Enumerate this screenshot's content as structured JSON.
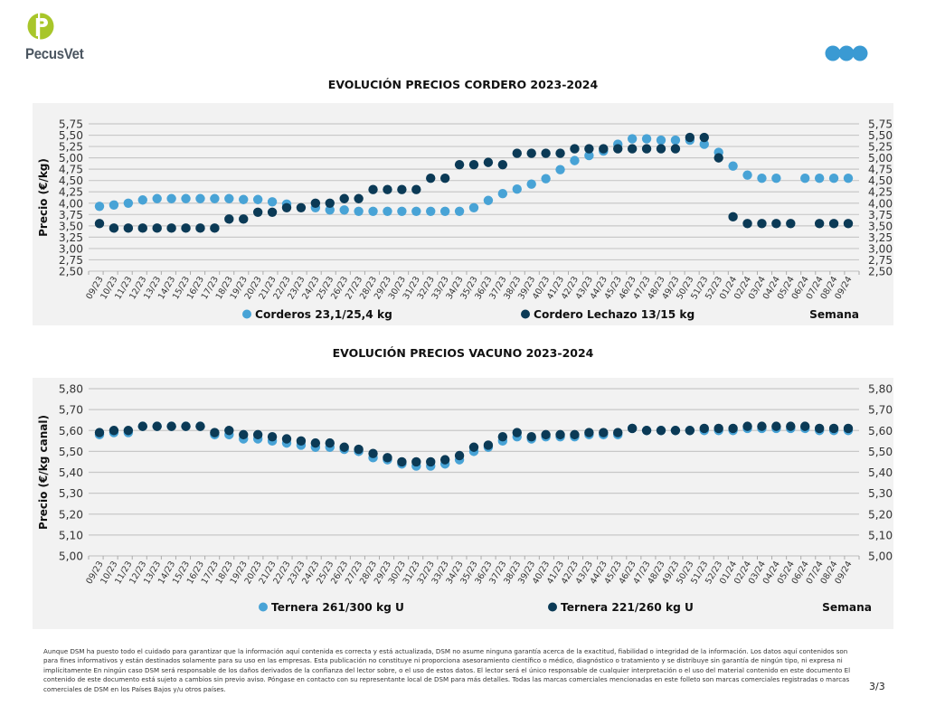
{
  "header": {
    "brand_name": "PecusVet",
    "colors": {
      "logo_green": "#a8c62a",
      "dsm_blue": "#3a9ad3"
    }
  },
  "footer": {
    "disclaimer": "Aunque DSM ha puesto todo el cuidado para garantizar que la información aquí contenida es correcta y está actualizada, DSM no asume ninguna garantía acerca de la exactitud, fiabilidad o integridad de la información. Los datos aquí contenidos son para fines informativos y están destinados solamente para su uso en las empresas. Esta publicación no constituye ni proporciona asesoramiento científico o médico, diagnóstico o tratamiento y se distribuye sin garantía de ningún tipo, ni expresa ni implícitamente En ningún caso DSM será responsable de los daños derivados de la confianza del lector sobre, o el uso de estos datos. El lector será el único responsable de cualquier interpretación o el uso del material contenido en este documento El contenido de este documento está sujeto a cambios sin previo aviso. Póngase en contacto con su representante local de DSM para más detalles. Todas las marcas comerciales mencionadas en este folleto son marcas comerciales registradas o marcas comerciales de DSM en los Países Bajos y/u otros países.",
    "page": "3/3"
  },
  "chart_data": [
    {
      "type": "scatter",
      "title": "EVOLUCIÓN PRECIOS CORDERO 2023-2024",
      "xlabel": "Semana",
      "ylabel": "Precio (€/kg)",
      "ylim": [
        2.5,
        5.75
      ],
      "ytick_step": 0.25,
      "ytick_labels": [
        "2,50",
        "2,75",
        "3,00",
        "3,25",
        "3,50",
        "3,75",
        "4,00",
        "4,25",
        "4,50",
        "4,75",
        "5,00",
        "5,25",
        "5,50",
        "5,75"
      ],
      "grid": true,
      "legend_position": "bottom",
      "secondary_y_axis": true,
      "categories": [
        "09/23",
        "10/23",
        "11/23",
        "12/23",
        "13/23",
        "14/23",
        "15/23",
        "16/23",
        "17/23",
        "18/23",
        "19/23",
        "20/23",
        "21/23",
        "22/23",
        "23/23",
        "24/23",
        "25/23",
        "26/23",
        "27/23",
        "28/23",
        "29/23",
        "30/23",
        "31/23",
        "32/23",
        "33/23",
        "34/23",
        "35/23",
        "36/23",
        "37/23",
        "38/23",
        "39/23",
        "40/23",
        "41/23",
        "42/23",
        "43/23",
        "44/23",
        "45/23",
        "46/23",
        "47/23",
        "48/23",
        "49/23",
        "50/23",
        "51/23",
        "52/23",
        "01/24",
        "02/24",
        "03/24",
        "04/24",
        "05/24",
        "06/24",
        "07/24",
        "08/24",
        "09/24"
      ],
      "series": [
        {
          "name": "Corderos 23,1/25,4 kg",
          "color": "#48a3d6",
          "values": [
            3.93,
            3.96,
            4.0,
            4.07,
            4.1,
            4.1,
            4.1,
            4.1,
            4.1,
            4.1,
            4.08,
            4.08,
            4.03,
            3.98,
            null,
            3.9,
            3.85,
            3.85,
            3.82,
            3.82,
            3.82,
            3.82,
            3.82,
            3.82,
            3.82,
            3.82,
            3.9,
            4.06,
            4.21,
            4.31,
            4.42,
            4.54,
            4.74,
            4.94,
            5.05,
            5.15,
            5.3,
            5.42,
            5.42,
            5.39,
            5.39,
            5.39,
            5.3,
            5.12,
            4.82,
            4.62,
            4.55,
            4.55,
            null,
            4.55,
            4.55,
            4.55,
            4.55
          ]
        },
        {
          "name": "Cordero Lechazo 13/15 kg",
          "color": "#0b3a56",
          "values": [
            3.55,
            3.45,
            3.45,
            3.45,
            3.45,
            3.45,
            3.45,
            3.45,
            3.45,
            3.65,
            3.65,
            3.8,
            3.8,
            3.9,
            3.9,
            4.0,
            4.0,
            4.1,
            4.1,
            4.3,
            4.3,
            4.3,
            4.3,
            4.55,
            4.55,
            4.85,
            4.85,
            4.9,
            4.85,
            5.1,
            5.1,
            5.1,
            5.1,
            5.2,
            5.2,
            5.2,
            5.2,
            5.2,
            5.2,
            5.2,
            5.2,
            5.45,
            5.45,
            5.0,
            3.7,
            3.55,
            3.55,
            3.55,
            3.55,
            null,
            3.55,
            3.55,
            3.55
          ]
        }
      ]
    },
    {
      "type": "scatter",
      "title": "EVOLUCIÓN PRECIOS VACUNO 2023-2024",
      "xlabel": "Semana",
      "ylabel": "Precio (€/kg canal)",
      "ylim": [
        5.0,
        5.8
      ],
      "ytick_step": 0.1,
      "ytick_labels": [
        "5,00",
        "5,10",
        "5,20",
        "5,30",
        "5,40",
        "5,50",
        "5,60",
        "5,70",
        "5,80"
      ],
      "grid": true,
      "legend_position": "bottom",
      "secondary_y_axis": true,
      "categories": [
        "09/23",
        "10/23",
        "11/23",
        "12/23",
        "13/23",
        "14/23",
        "15/23",
        "16/23",
        "17/23",
        "18/23",
        "19/23",
        "20/23",
        "21/23",
        "22/23",
        "23/23",
        "24/23",
        "25/23",
        "26/23",
        "27/23",
        "28/23",
        "29/23",
        "30/23",
        "31/23",
        "32/23",
        "33/23",
        "34/23",
        "35/23",
        "36/23",
        "37/23",
        "38/23",
        "39/23",
        "40/23",
        "41/23",
        "42/23",
        "43/23",
        "44/23",
        "45/23",
        "46/23",
        "47/23",
        "48/23",
        "49/23",
        "50/23",
        "51/23",
        "52/23",
        "01/24",
        "02/24",
        "03/24",
        "04/24",
        "05/24",
        "06/24",
        "07/24",
        "08/24",
        "09/24"
      ],
      "series": [
        {
          "name": "Ternera 261/300 kg U",
          "color": "#48a3d6",
          "values": [
            5.58,
            5.59,
            5.59,
            5.62,
            5.62,
            5.62,
            5.62,
            5.62,
            5.58,
            5.58,
            5.56,
            5.56,
            5.55,
            5.54,
            5.53,
            5.52,
            5.52,
            5.51,
            5.5,
            5.47,
            5.46,
            5.44,
            5.43,
            5.43,
            5.44,
            5.46,
            5.5,
            5.52,
            5.55,
            5.57,
            5.56,
            5.57,
            5.57,
            5.57,
            5.58,
            5.58,
            5.58,
            5.61,
            5.6,
            5.6,
            5.6,
            5.6,
            5.6,
            5.6,
            5.6,
            5.61,
            5.61,
            5.61,
            5.61,
            5.61,
            5.6,
            5.6,
            5.6
          ]
        },
        {
          "name": "Ternera 221/260 kg U",
          "color": "#0b3a56",
          "values": [
            5.59,
            5.6,
            5.6,
            5.62,
            5.62,
            5.62,
            5.62,
            5.62,
            5.59,
            5.6,
            5.58,
            5.58,
            5.57,
            5.56,
            5.55,
            5.54,
            5.54,
            5.52,
            5.51,
            5.49,
            5.47,
            5.45,
            5.45,
            5.45,
            5.46,
            5.48,
            5.52,
            5.53,
            5.57,
            5.59,
            5.57,
            5.58,
            5.58,
            5.58,
            5.59,
            5.59,
            5.59,
            5.61,
            5.6,
            5.6,
            5.6,
            5.6,
            5.61,
            5.61,
            5.61,
            5.62,
            5.62,
            5.62,
            5.62,
            5.62,
            5.61,
            5.61,
            5.61
          ]
        }
      ]
    }
  ]
}
